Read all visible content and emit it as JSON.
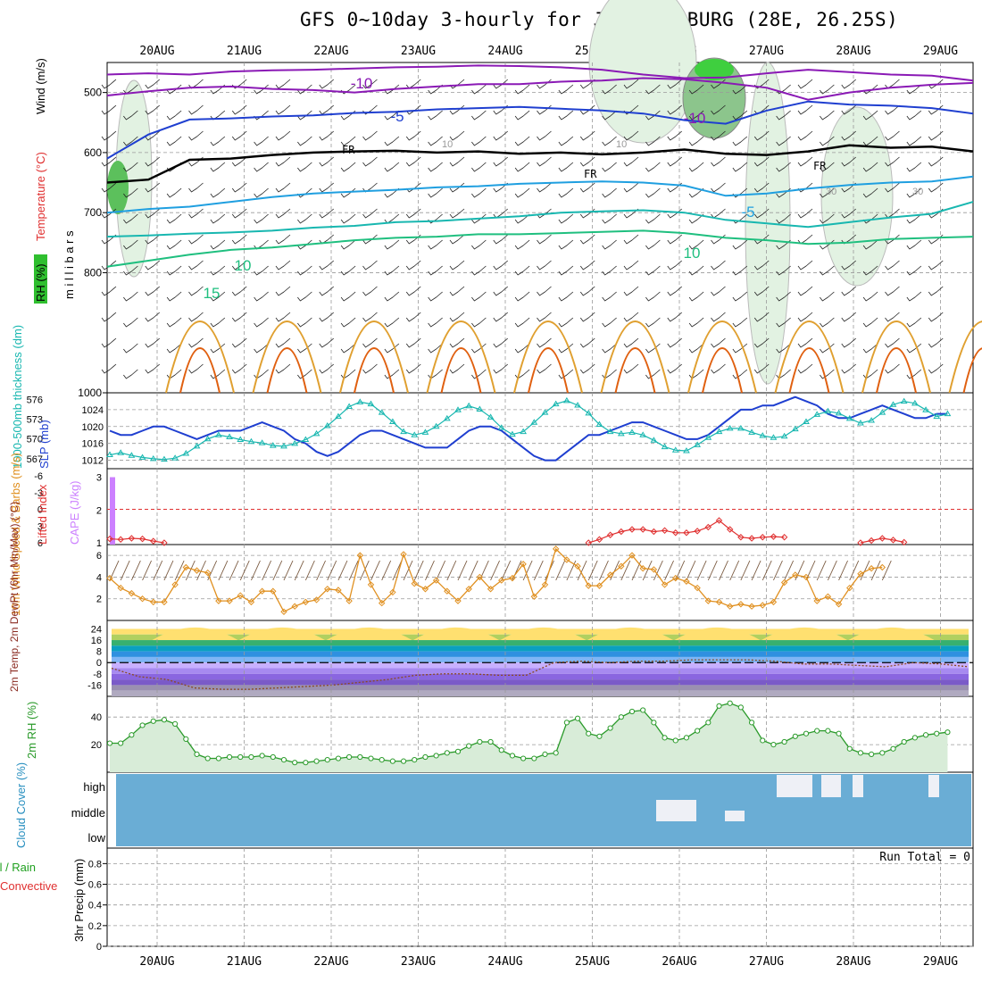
{
  "title": "GFS 0~10day 3-hourly for JOHANNESBURG (28E, 26.25S)",
  "dates": [
    "20AUG",
    "21AUG",
    "22AUG",
    "23AUG",
    "24AUG",
    "25AUG",
    "26AUG",
    "27AUG",
    "28AUG",
    "29AUG"
  ],
  "colors": {
    "purple": "#8a19b5",
    "blue": "#1f3fd0",
    "cyan": "#1f9fe0",
    "teal": "#18b7b0",
    "green": "#1fbf7f",
    "orange": "#e0a030",
    "darkorange": "#e06010",
    "rh_green": "#3fcf3f",
    "rh_light": "#e2f2e2",
    "cloud": "#6aadd5",
    "cape": "#cc80ff",
    "li": "#e03030",
    "wind10": "#e09020",
    "rh2m": "#2a9a2a"
  },
  "chart_data": [
    {
      "type": "contour",
      "panel": "upper-air",
      "ylabel_parts": [
        "RH (%)",
        "Temperature (°C)",
        "Wind (m/s)"
      ],
      "yaxis_label": "millibars",
      "yticks": [
        500,
        600,
        700,
        800,
        1000
      ],
      "ylim": [
        450,
        1000
      ],
      "freezing_label": "FR",
      "isotherm_labels": [
        {
          "text": "-10",
          "series": "purple"
        },
        {
          "text": "-10",
          "series": "purple"
        },
        {
          "text": "-5",
          "series": "blue"
        },
        {
          "text": "-5",
          "series": "cyan"
        },
        {
          "text": "10",
          "series": "green"
        },
        {
          "text": "10",
          "series": "green"
        },
        {
          "text": "15",
          "series": "green"
        }
      ],
      "rh_labels": [
        "10",
        "10",
        "30",
        "30"
      ],
      "isotherms": [
        {
          "color": "purple",
          "p": [
            470,
            468,
            470,
            465,
            463,
            462,
            460,
            458,
            457,
            455,
            456,
            458,
            462,
            470,
            476,
            475,
            468,
            462,
            466,
            470,
            472,
            480
          ]
        },
        {
          "color": "purple",
          "p": [
            505,
            498,
            492,
            490,
            494,
            496,
            500,
            494,
            490,
            486,
            486,
            482,
            480,
            476,
            478,
            484,
            492,
            512,
            500,
            492,
            487,
            484
          ]
        },
        {
          "color": "blue",
          "p": [
            610,
            570,
            545,
            543,
            540,
            538,
            534,
            532,
            528,
            526,
            524,
            527,
            530,
            535,
            546,
            552,
            530,
            515,
            520,
            522,
            526,
            535
          ]
        },
        {
          "color": "black",
          "p": [
            650,
            645,
            612,
            610,
            604,
            600,
            598,
            597,
            600,
            598,
            602,
            600,
            603,
            600,
            595,
            602,
            604,
            598,
            588,
            592,
            590,
            598
          ]
        },
        {
          "color": "cyan",
          "p": [
            700,
            694,
            690,
            682,
            674,
            668,
            665,
            662,
            658,
            656,
            652,
            650,
            648,
            650,
            655,
            672,
            668,
            660,
            654,
            650,
            648,
            640
          ]
        },
        {
          "color": "teal",
          "p": [
            740,
            738,
            735,
            733,
            730,
            725,
            722,
            716,
            714,
            710,
            706,
            700,
            698,
            696,
            700,
            712,
            718,
            724,
            716,
            708,
            702,
            682
          ]
        },
        {
          "color": "green",
          "p": [
            790,
            780,
            770,
            762,
            758,
            752,
            746,
            742,
            740,
            736,
            736,
            734,
            732,
            730,
            734,
            742,
            746,
            752,
            750,
            744,
            742,
            740
          ]
        }
      ]
    },
    {
      "type": "line",
      "panel": "slp-thickness",
      "ylabel": "SLP (mb)",
      "ylabel2": "1000-500mb thickness (dm)",
      "yticks_left": [
        567,
        570,
        573,
        576
      ],
      "yticks_right": [
        1012,
        1016,
        1020,
        1024
      ],
      "x": [
        0,
        1,
        2,
        3,
        4,
        5,
        6,
        7,
        8,
        9,
        10,
        11,
        12,
        13,
        14,
        15,
        16,
        17,
        18,
        19,
        20,
        21,
        22,
        23,
        24,
        25,
        26,
        27,
        28,
        29,
        30,
        31,
        32,
        33,
        34,
        35,
        36,
        37,
        38,
        39,
        40,
        41,
        42,
        43,
        44,
        45,
        46,
        47,
        48,
        49,
        50,
        51,
        52,
        53,
        54,
        55,
        56,
        57,
        58,
        59,
        60,
        61,
        62,
        63,
        64,
        65,
        66,
        67,
        68,
        69,
        70,
        71,
        72,
        73,
        74,
        75,
        76,
        77
      ],
      "series": [
        {
          "name": "SLP (mb)",
          "color": "blue",
          "values": [
            1019,
            1018,
            1018,
            1019,
            1020,
            1020,
            1019,
            1018,
            1017,
            1018,
            1019,
            1019,
            1019,
            1020,
            1021,
            1020,
            1019,
            1017,
            1016,
            1014,
            1013,
            1014,
            1016,
            1018,
            1019,
            1019,
            1018,
            1017,
            1016,
            1015,
            1015,
            1015,
            1017,
            1019,
            1020,
            1020,
            1019,
            1017,
            1015,
            1013,
            1012,
            1012,
            1014,
            1016,
            1018,
            1018,
            1019,
            1020,
            1021,
            1021,
            1020,
            1019,
            1018,
            1017,
            1017,
            1018,
            1020,
            1022,
            1024,
            1024,
            1025,
            1025,
            1026,
            1027,
            1026,
            1025,
            1023,
            1022,
            1022,
            1023,
            1024,
            1025,
            1024,
            1023,
            1022,
            1022,
            1023,
            1023
          ]
        },
        {
          "name": "1000-500mb thickness (dm)",
          "color": "teal",
          "values": [
            567.6,
            567.9,
            567.5,
            567.2,
            567.0,
            566.9,
            567.1,
            567.8,
            568.9,
            570.0,
            570.6,
            570.3,
            569.9,
            569.6,
            569.4,
            569.0,
            568.9,
            569.3,
            569.9,
            570.8,
            572.0,
            573.4,
            574.9,
            575.6,
            575.3,
            574.0,
            572.6,
            571.1,
            570.6,
            571.0,
            571.9,
            573.1,
            574.4,
            575.0,
            574.5,
            573.3,
            571.7,
            570.7,
            571.1,
            572.5,
            574.0,
            575.3,
            575.8,
            575.1,
            573.9,
            572.2,
            571.1,
            570.8,
            571.0,
            570.6,
            569.8,
            568.8,
            568.3,
            568.2,
            569.1,
            570.2,
            571.1,
            571.6,
            571.6,
            571.0,
            570.5,
            570.2,
            570.4,
            571.5,
            572.6,
            573.7,
            574.2,
            573.9,
            573.1,
            572.4,
            572.8,
            574.0,
            575.2,
            575.7,
            575.4,
            574.4,
            573.4,
            573.8
          ]
        }
      ]
    },
    {
      "type": "bar",
      "panel": "cape-li",
      "ylabel": "CAPE (J/kg)",
      "ylabel2": "Lifted Index",
      "yticks_cape": [
        1,
        2,
        3
      ],
      "yticks_li": [
        -6,
        -3,
        0,
        3,
        6
      ],
      "cape_bar": {
        "x": 0,
        "value": 3
      },
      "li_dashed_value": 0,
      "li_segments": [
        {
          "x": [
            0,
            1,
            2,
            3,
            4,
            5
          ],
          "values": [
            5.3,
            5.4,
            5.2,
            5.3,
            5.7,
            6.0
          ]
        },
        {
          "x": [
            44,
            45,
            46,
            47,
            48,
            49,
            50,
            51,
            52,
            53,
            54,
            55,
            56,
            57,
            58,
            59,
            60,
            61,
            62
          ],
          "values": [
            6.0,
            5.4,
            4.6,
            4.0,
            3.6,
            3.6,
            4.0,
            3.8,
            4.2,
            4.2,
            3.9,
            3.2,
            2.0,
            3.6,
            5.0,
            5.2,
            5.0,
            4.9,
            5.0
          ]
        },
        {
          "x": [
            69,
            70,
            71,
            72,
            73
          ],
          "values": [
            6.0,
            5.6,
            5.2,
            5.5,
            5.9
          ]
        }
      ]
    },
    {
      "type": "line",
      "panel": "wind10m",
      "ylabel": "10m Wind Speed & Barbs (m/s)",
      "yticks": [
        2,
        4,
        6
      ],
      "ylim": [
        0,
        7
      ],
      "series": [
        {
          "name": "10m Wind Speed",
          "color": "wind10",
          "values": [
            3.9,
            3.0,
            2.5,
            2.0,
            1.7,
            1.7,
            3.3,
            4.9,
            4.6,
            4.4,
            1.8,
            1.8,
            2.3,
            1.7,
            2.7,
            2.7,
            0.8,
            1.3,
            1.7,
            1.9,
            2.9,
            2.8,
            1.8,
            6.0,
            3.3,
            1.6,
            2.6,
            6.1,
            3.4,
            2.9,
            3.7,
            2.7,
            1.8,
            2.9,
            4.0,
            2.9,
            3.7,
            3.9,
            5.2,
            2.2,
            3.3,
            6.6,
            5.6,
            5.0,
            3.2,
            3.2,
            4.2,
            5.0,
            6.0,
            4.8,
            4.7,
            3.3,
            3.9,
            3.6,
            3.0,
            1.8,
            1.7,
            1.3,
            1.5,
            1.3,
            1.4,
            1.7,
            3.5,
            4.2,
            4.0,
            1.8,
            2.2,
            1.5,
            3.0,
            4.3,
            4.8,
            4.9
          ]
        }
      ]
    },
    {
      "type": "area",
      "panel": "temp2m",
      "ylabel": "2m Temp, 2m DewPt (6hr Min/Max) (°C)",
      "yticks": [
        -16,
        -8,
        0,
        8,
        16,
        24
      ],
      "ylim": [
        -24,
        30
      ],
      "temp_max": [
        24,
        24,
        24,
        24,
        24,
        24,
        24,
        24,
        24,
        24
      ],
      "temp_min": [
        14,
        14,
        14,
        14,
        14,
        14,
        14,
        14,
        14,
        14
      ],
      "dewpoint": [
        -4,
        -10,
        -12,
        -18,
        -19,
        -19,
        -18,
        -17,
        -16,
        -14,
        -12,
        -9,
        -8,
        -8,
        -9,
        -9,
        0,
        1,
        0,
        1,
        1,
        2,
        2,
        2,
        1,
        -1,
        -1,
        -2,
        -3,
        0,
        -1,
        -3
      ]
    },
    {
      "type": "area",
      "panel": "rh2m",
      "ylabel": "2m RH (%)",
      "yticks": [
        20,
        40
      ],
      "ylim": [
        0,
        55
      ],
      "series": [
        {
          "name": "2m RH",
          "color": "rh2m",
          "values": [
            21,
            21,
            27,
            34,
            37,
            38,
            35,
            24,
            13,
            10,
            10,
            11,
            11,
            11,
            12,
            11,
            9,
            7,
            7,
            8,
            9,
            10,
            11,
            11,
            10,
            9,
            8,
            8,
            9,
            11,
            12,
            14,
            15,
            19,
            22,
            22,
            16,
            12,
            10,
            10,
            13,
            14,
            36,
            39,
            28,
            26,
            32,
            40,
            44,
            45,
            36,
            25,
            23,
            25,
            30,
            36,
            48,
            50,
            47,
            36,
            23,
            20,
            22,
            26,
            28,
            30,
            30,
            28,
            17,
            14,
            13,
            14,
            17,
            22,
            25,
            27,
            28,
            29
          ]
        }
      ]
    },
    {
      "type": "heatmap",
      "panel": "cloud",
      "ylabel": "Cloud Cover (%)",
      "levels": [
        "high",
        "middle",
        "low"
      ]
    },
    {
      "type": "bar",
      "panel": "precip",
      "ylabel": "3hr Precip (mm)",
      "legend": [
        "Total / Rain",
        "Convective"
      ],
      "yticks": [
        0,
        0.2,
        0.4,
        0.6,
        0.8
      ],
      "ylim": [
        0,
        0.95
      ],
      "run_total": "Run Total = 0"
    }
  ]
}
